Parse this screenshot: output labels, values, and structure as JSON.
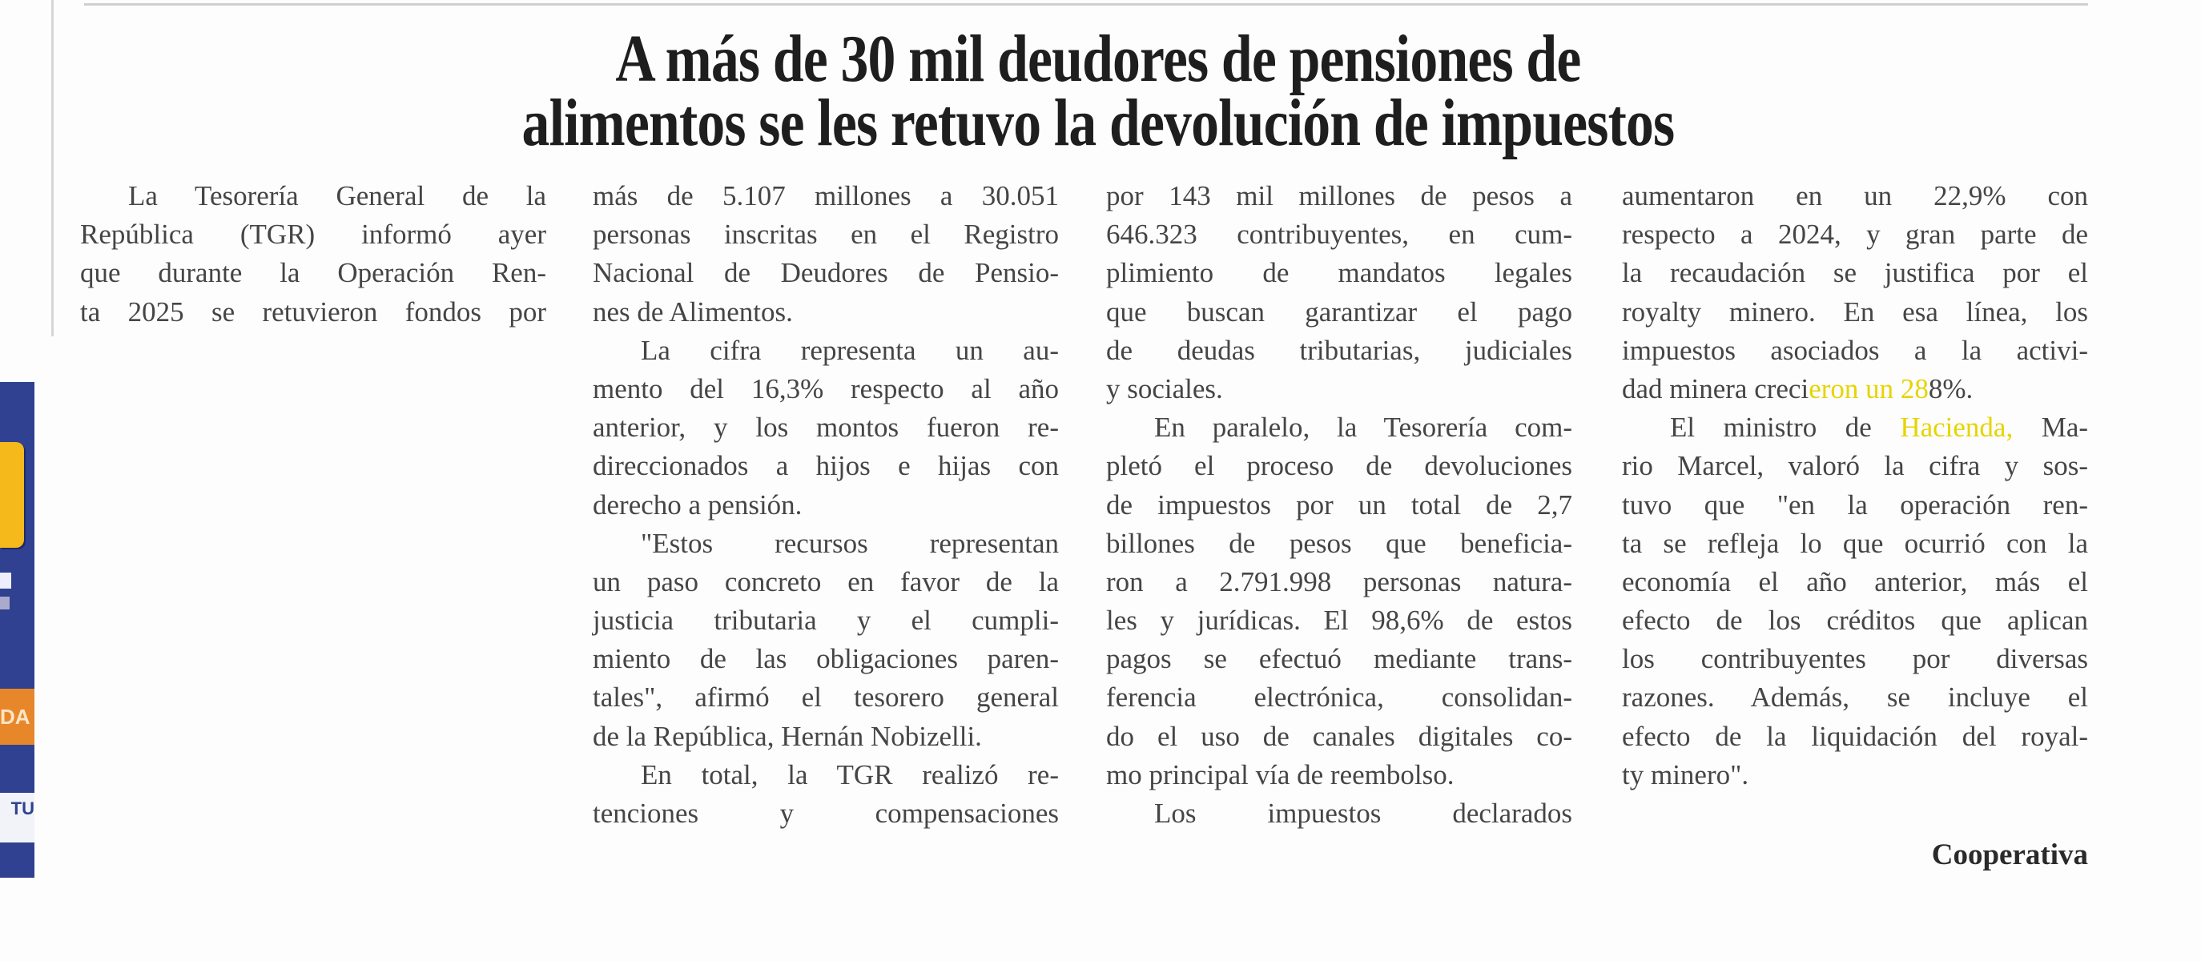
{
  "headline": {
    "line1": "A más de 30 mil deudores de pensiones de",
    "line2": "alimentos se les retuvo la devolución de impuestos"
  },
  "article": {
    "columns": [
      {
        "paragraphs": [
          {
            "continued": false,
            "continues": true,
            "lines": [
              "La Tesorería General de la",
              "República (TGR) informó ayer",
              "que durante la Operación Ren-",
              "ta 2025 se retuvieron fondos por"
            ]
          }
        ]
      },
      {
        "paragraphs": [
          {
            "continued": true,
            "continues": false,
            "lines": [
              "más de 5.107 millones a 30.051",
              "personas inscritas en el Registro",
              "Nacional de Deudores de Pensio-",
              "nes de Alimentos."
            ]
          },
          {
            "continued": false,
            "continues": false,
            "lines": [
              "La cifra representa un au-",
              "mento del 16,3% respecto al año",
              "anterior, y los montos fueron re-",
              "direccionados a hijos e hijas con",
              "derecho a pensión."
            ]
          },
          {
            "continued": false,
            "continues": false,
            "lines": [
              "\"Estos recursos representan",
              "un paso concreto en favor de la",
              "justicia tributaria y el cumpli-",
              "miento de las obligaciones paren-",
              "tales\", afirmó el tesorero general",
              "de la República, Hernán Nobizelli."
            ]
          },
          {
            "continued": false,
            "continues": true,
            "lines": [
              "En total, la TGR realizó re-",
              "tenciones y compensaciones"
            ]
          }
        ]
      },
      {
        "paragraphs": [
          {
            "continued": true,
            "continues": false,
            "lines": [
              "por 143 mil millones de pesos a",
              "646.323 contribuyentes, en cum-",
              "plimiento de mandatos legales",
              "que buscan garantizar el pago",
              "de deudas tributarias, judiciales",
              "y sociales."
            ]
          },
          {
            "continued": false,
            "continues": false,
            "lines": [
              "En paralelo, la Tesorería com-",
              "pletó el proceso de devoluciones",
              "de impuestos por un total de 2,7",
              "billones de pesos que beneficia-",
              "ron a 2.791.998 personas natura-",
              "les y jurídicas. El 98,6% de estos",
              "pagos se efectuó mediante trans-",
              "ferencia electrónica, consolidan-",
              "do el uso de canales digitales co-",
              "mo principal vía de reembolso."
            ]
          },
          {
            "continued": false,
            "continues": true,
            "lines": [
              "Los impuestos declarados"
            ]
          }
        ]
      },
      {
        "paragraphs": [
          {
            "continued": true,
            "continues": false,
            "lines": [
              "aumentaron en un 22,9% con",
              "respecto a 2024, y gran parte de",
              "la recaudación se justifica por el",
              "royalty minero. En esa línea, los",
              "impuestos asociados a la activi-",
              {
                "segments": [
                  {
                    "text": "dad minera creci"
                  },
                  {
                    "text": "eron un 28",
                    "highlight": true
                  },
                  {
                    "text": "8%."
                  }
                ]
              }
            ]
          },
          {
            "continued": false,
            "continues": false,
            "lines": [
              {
                "segments": [
                  {
                    "text": "El ministro de "
                  },
                  {
                    "text": "Hacienda,",
                    "highlight": true
                  },
                  {
                    "text": " Ma-"
                  }
                ]
              },
              "rio Marcel, valoró la cifra y sos-",
              "tuvo que \"en la operación ren-",
              "ta se refleja lo que ocurrió con la",
              "economía el año anterior, más el",
              "efecto de los créditos que aplican",
              "los contribuyentes por diversas",
              "razones. Además, se incluye el",
              "efecto de la liquidación del royal-",
              "ty minero\"."
            ]
          }
        ]
      }
    ],
    "byline": "Cooperativa"
  },
  "ad": {
    "background_color": "#2f4190",
    "orange_text": "DA",
    "strip_text": "TU"
  }
}
